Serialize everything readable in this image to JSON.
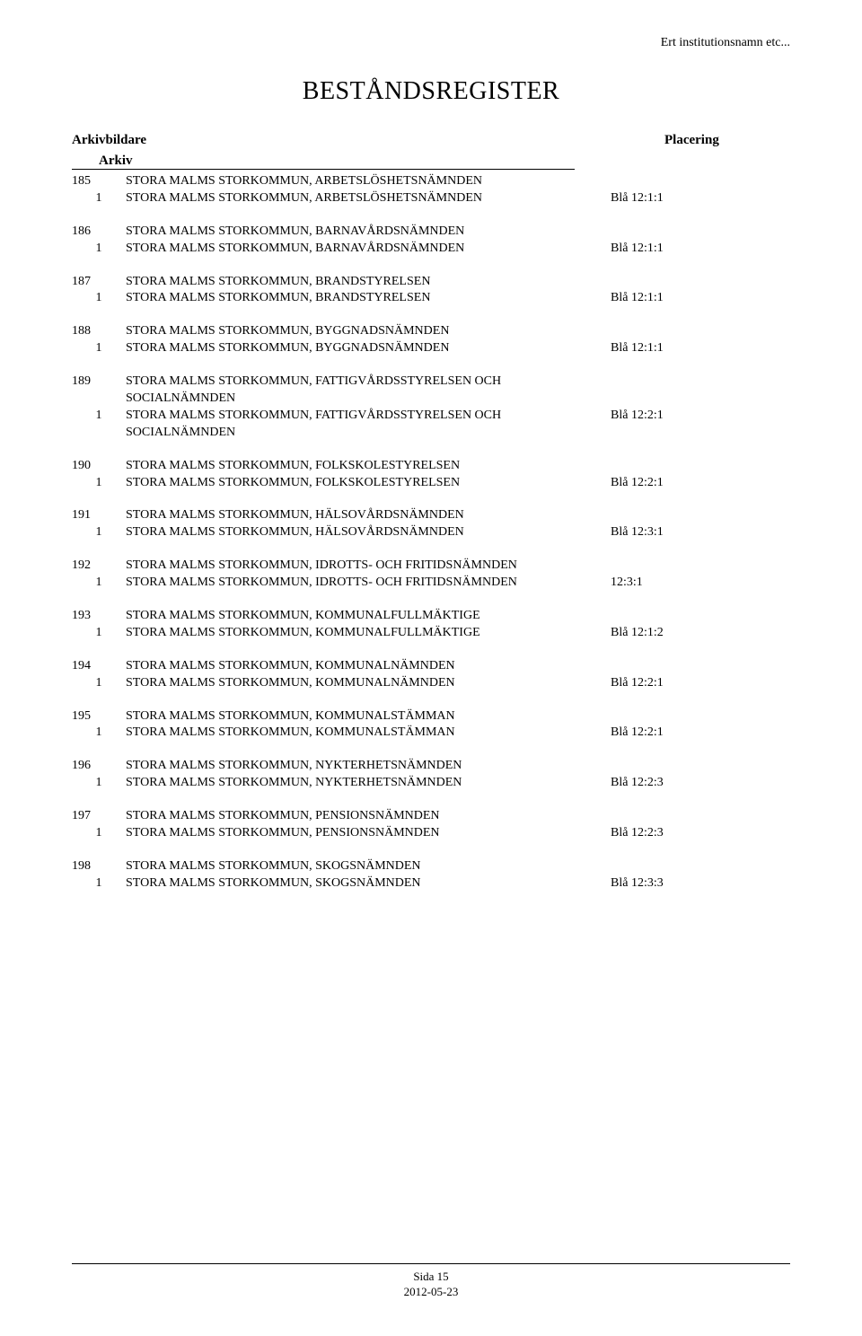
{
  "header_institution": "Ert institutionsnamn etc...",
  "title": "BESTÅNDSREGISTER",
  "columns": {
    "left": "Arkivbildare",
    "right": "Placering",
    "sub": "Arkiv"
  },
  "entries": [
    {
      "num": "185",
      "title": "STORA MALMS STORKOMMUN, ARBETSLÖSHETSNÄMNDEN",
      "sub": [
        {
          "n": "1",
          "t": "STORA MALMS STORKOMMUN, ARBETSLÖSHETSNÄMNDEN",
          "p": "Blå 12:1:1"
        }
      ]
    },
    {
      "num": "186",
      "title": "STORA MALMS STORKOMMUN, BARNAVÅRDSNÄMNDEN",
      "sub": [
        {
          "n": "1",
          "t": "STORA MALMS STORKOMMUN, BARNAVÅRDSNÄMNDEN",
          "p": "Blå 12:1:1"
        }
      ]
    },
    {
      "num": "187",
      "title": "STORA MALMS STORKOMMUN, BRANDSTYRELSEN",
      "sub": [
        {
          "n": "1",
          "t": "STORA MALMS STORKOMMUN, BRANDSTYRELSEN",
          "p": "Blå 12:1:1"
        }
      ]
    },
    {
      "num": "188",
      "title": "STORA MALMS STORKOMMUN, BYGGNADSNÄMNDEN",
      "sub": [
        {
          "n": "1",
          "t": "STORA MALMS STORKOMMUN, BYGGNADSNÄMNDEN",
          "p": "Blå 12:1:1"
        }
      ]
    },
    {
      "num": "189",
      "title": "STORA MALMS STORKOMMUN, FATTIGVÅRDSSTYRELSEN OCH SOCIALNÄMNDEN",
      "sub": [
        {
          "n": "1",
          "t": "STORA MALMS STORKOMMUN, FATTIGVÅRDSSTYRELSEN OCH SOCIALNÄMNDEN",
          "p": "Blå 12:2:1"
        }
      ]
    },
    {
      "num": "190",
      "title": "STORA MALMS STORKOMMUN, FOLKSKOLESTYRELSEN",
      "sub": [
        {
          "n": "1",
          "t": "STORA MALMS STORKOMMUN, FOLKSKOLESTYRELSEN",
          "p": "Blå 12:2:1"
        }
      ]
    },
    {
      "num": "191",
      "title": "STORA MALMS STORKOMMUN, HÄLSOVÅRDSNÄMNDEN",
      "sub": [
        {
          "n": "1",
          "t": "STORA MALMS STORKOMMUN, HÄLSOVÅRDSNÄMNDEN",
          "p": "Blå 12:3:1"
        }
      ]
    },
    {
      "num": "192",
      "title": "STORA MALMS STORKOMMUN, IDROTTS- OCH FRITIDSNÄMNDEN",
      "sub": [
        {
          "n": "1",
          "t": "STORA MALMS STORKOMMUN, IDROTTS- OCH FRITIDSNÄMNDEN",
          "p": "12:3:1"
        }
      ]
    },
    {
      "num": "193",
      "title": "STORA MALMS STORKOMMUN, KOMMUNALFULLMÄKTIGE",
      "sub": [
        {
          "n": "1",
          "t": "STORA MALMS STORKOMMUN, KOMMUNALFULLMÄKTIGE",
          "p": "Blå 12:1:2"
        }
      ]
    },
    {
      "num": "194",
      "title": "STORA MALMS STORKOMMUN, KOMMUNALNÄMNDEN",
      "sub": [
        {
          "n": "1",
          "t": "STORA MALMS STORKOMMUN, KOMMUNALNÄMNDEN",
          "p": "Blå 12:2:1"
        }
      ]
    },
    {
      "num": "195",
      "title": "STORA MALMS STORKOMMUN, KOMMUNALSTÄMMAN",
      "sub": [
        {
          "n": "1",
          "t": "STORA MALMS STORKOMMUN, KOMMUNALSTÄMMAN",
          "p": "Blå 12:2:1"
        }
      ]
    },
    {
      "num": "196",
      "title": "STORA MALMS STORKOMMUN, NYKTERHETSNÄMNDEN",
      "sub": [
        {
          "n": "1",
          "t": "STORA MALMS STORKOMMUN, NYKTERHETSNÄMNDEN",
          "p": "Blå 12:2:3"
        }
      ]
    },
    {
      "num": "197",
      "title": "STORA MALMS STORKOMMUN, PENSIONSNÄMNDEN",
      "sub": [
        {
          "n": "1",
          "t": "STORA MALMS STORKOMMUN, PENSIONSNÄMNDEN",
          "p": "Blå 12:2:3"
        }
      ]
    },
    {
      "num": "198",
      "title": "STORA MALMS STORKOMMUN, SKOGSNÄMNDEN",
      "sub": [
        {
          "n": "1",
          "t": "STORA MALMS STORKOMMUN, SKOGSNÄMNDEN",
          "p": "Blå 12:3:3"
        }
      ]
    }
  ],
  "footer": {
    "page": "Sida 15",
    "date": "2012-05-23"
  }
}
